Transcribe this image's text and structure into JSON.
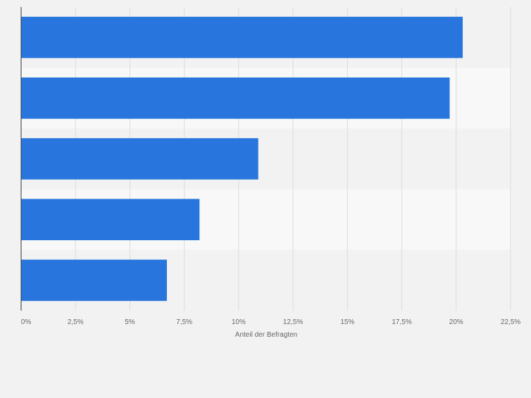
{
  "chart_data": {
    "type": "bar",
    "orientation": "horizontal",
    "categories": [
      "",
      "",
      "",
      "",
      ""
    ],
    "values": [
      20.3,
      19.7,
      10.9,
      8.2,
      6.7
    ],
    "xlabel": "Anteil der Befragten",
    "ylabel": "",
    "xlim": [
      0,
      22.5
    ],
    "ticks": [
      0,
      2.5,
      5,
      7.5,
      10,
      12.5,
      15,
      17.5,
      20,
      22.5
    ],
    "tick_labels": [
      "0%",
      "2,5%",
      "5%",
      "7,5%",
      "10%",
      "12,5%",
      "15%",
      "17,5%",
      "20%",
      "22,5%"
    ],
    "grid": true,
    "bar_color": "#2876dd"
  }
}
